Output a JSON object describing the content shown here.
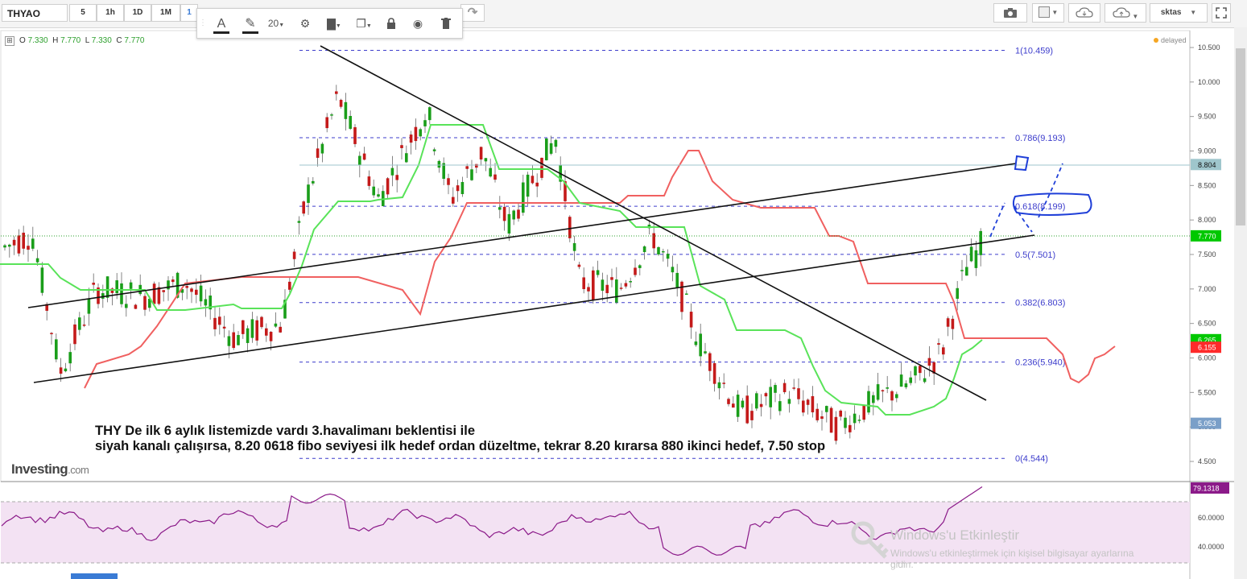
{
  "symbol": "THYAO",
  "timeframes": [
    "5",
    "1h",
    "1D",
    "1M",
    "1"
  ],
  "drawing_toolbar": {
    "font_size": "20"
  },
  "right_toolbar": {
    "user": "sktas"
  },
  "ohlc": {
    "o_label": "O",
    "o": "7.330",
    "h_label": "H",
    "h": "7.770",
    "l_label": "L",
    "l": "7.330",
    "c_label": "C",
    "c": "7.770"
  },
  "delayed": "delayed",
  "price_axis": [
    "10.500",
    "10.000",
    "9.500",
    "9.000",
    "8.500",
    "8.000",
    "7.500",
    "7.000",
    "6.500",
    "6.000",
    "5.500",
    "5.000",
    "4.500"
  ],
  "badges": [
    {
      "value": "8.804",
      "color": "#9fc6cc"
    },
    {
      "value": "7.770",
      "color": "#00c800"
    },
    {
      "value": "6.265",
      "color": "#00c800"
    },
    {
      "value": "6.155",
      "color": "#ff2a2a"
    },
    {
      "value": "5.053",
      "color": "#7a9fc8"
    }
  ],
  "fibo": [
    {
      "label": "1(10.459)",
      "value": 10.459
    },
    {
      "label": "0.786(9.193)",
      "value": 9.193
    },
    {
      "label": "0.618(8.199)",
      "value": 8.199
    },
    {
      "label": "0.5(7.501)",
      "value": 7.501
    },
    {
      "label": "0.382(6.803)",
      "value": 6.803
    },
    {
      "label": "0.236(5.940)",
      "value": 5.94
    },
    {
      "label": "0(4.544)",
      "value": 4.544
    }
  ],
  "annotation": {
    "line1": "THY De ilk 6 aylık listemizde vardı 3.havalimanı beklentisi ile",
    "line2": "siyah kanalı çalışırsa, 8.20 0618 fibo seviyesi ilk hedef ordan düzeltme, tekrar 8.20 kırarsa 880 ikinci hedef, 7.50 stop"
  },
  "logo": {
    "main": "Investing",
    "suffix": ".com"
  },
  "rsi": {
    "value": "79.1318",
    "axis": [
      "60.0000",
      "40.0000"
    ],
    "color": "#8b1a89"
  },
  "watermark": {
    "title": "Windows'u Etkinleştir",
    "sub1": "Windows'u etkinleştirmek için kişisel bilgisayar ayarlarına",
    "sub2": "gidin."
  },
  "colors": {
    "up": "#1a9e1a",
    "down": "#c41a1a",
    "tenkan": "#59e359",
    "kijun": "#f06060",
    "fibo": "#3d3dcc",
    "rsi_band": "#f3e2f3"
  }
}
